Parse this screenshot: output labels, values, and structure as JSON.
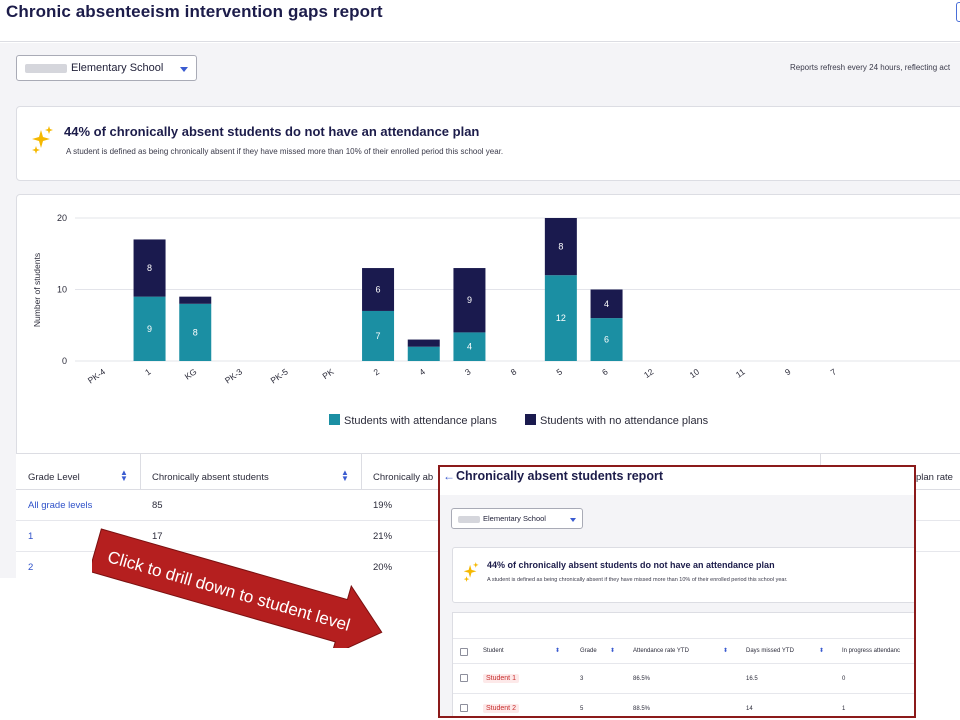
{
  "page_title": "Chronic absenteeism intervention gaps report",
  "school_selector": {
    "value": "Elementary School"
  },
  "refresh_note": "Reports refresh every 24 hours, reflecting act",
  "insight": {
    "headline": "44% of chronically absent students do not have an attendance plan",
    "subtext": "A student is defined as being chronically absent if they have missed more than 10% of their enrolled period this school year."
  },
  "chart_data": {
    "type": "bar",
    "stacked": true,
    "ylabel": "Number of students",
    "ylim": [
      0,
      20
    ],
    "yticks": [
      0,
      10,
      20
    ],
    "categories": [
      "PK-4",
      "1",
      "KG",
      "PK-3",
      "PK-5",
      "PK",
      "2",
      "4",
      "3",
      "8",
      "5",
      "6",
      "12",
      "10",
      "11",
      "9",
      "7"
    ],
    "series": [
      {
        "name": "Students with attendance plans",
        "color": "#1b8fa3",
        "values": [
          0,
          9,
          8,
          0,
          0,
          0,
          7,
          2,
          4,
          0,
          12,
          6,
          0,
          0,
          0,
          0,
          0
        ],
        "labels": [
          "",
          "9",
          "8",
          "",
          "",
          "",
          "7",
          "",
          "4",
          "",
          "12",
          "6",
          "",
          "",
          "",
          "",
          ""
        ]
      },
      {
        "name": "Students with no attendance plans",
        "color": "#1a1a4e",
        "values": [
          0,
          8,
          1,
          0,
          0,
          0,
          6,
          1,
          9,
          0,
          8,
          4,
          0,
          0,
          0,
          0,
          0
        ],
        "labels": [
          "",
          "8",
          "",
          "",
          "",
          "",
          "6",
          "",
          "9",
          "",
          "8",
          "4",
          "",
          "",
          "",
          "",
          ""
        ]
      }
    ],
    "legend_position": "bottom",
    "grid": true
  },
  "legend": {
    "with_plans": "Students with attendance plans",
    "no_plans": "Students with no attendance plans"
  },
  "table": {
    "headers": [
      "Grade Level",
      "Chronically absent students",
      "Chronically ab",
      "plan rate"
    ],
    "rows": [
      {
        "grade": "All grade levels",
        "count": "85",
        "pct": "19%"
      },
      {
        "grade": "1",
        "count": "17",
        "pct": "21%"
      },
      {
        "grade": "2",
        "count": "",
        "pct": "20%"
      }
    ]
  },
  "callout": {
    "text": "Click to drill down to student level"
  },
  "drill": {
    "back_icon": "←",
    "title": "Chronically absent students report",
    "school_value": "Elementary School",
    "headline": "44% of chronically absent students do not have an attendance plan",
    "subtext": "A student is defined as being chronically absent if they have missed more than 10% of their enrolled period this school year.",
    "headers": [
      "Student",
      "Grade",
      "Attendance rate YTD",
      "Days missed YTD",
      "In progress attendanc"
    ],
    "rows": [
      {
        "student": "Student 1",
        "grade": "3",
        "rate": "86.5%",
        "days": "16.5",
        "in_progress": "0"
      },
      {
        "student": "Student 2",
        "grade": "5",
        "rate": "88.5%",
        "days": "14",
        "in_progress": "1"
      }
    ]
  }
}
